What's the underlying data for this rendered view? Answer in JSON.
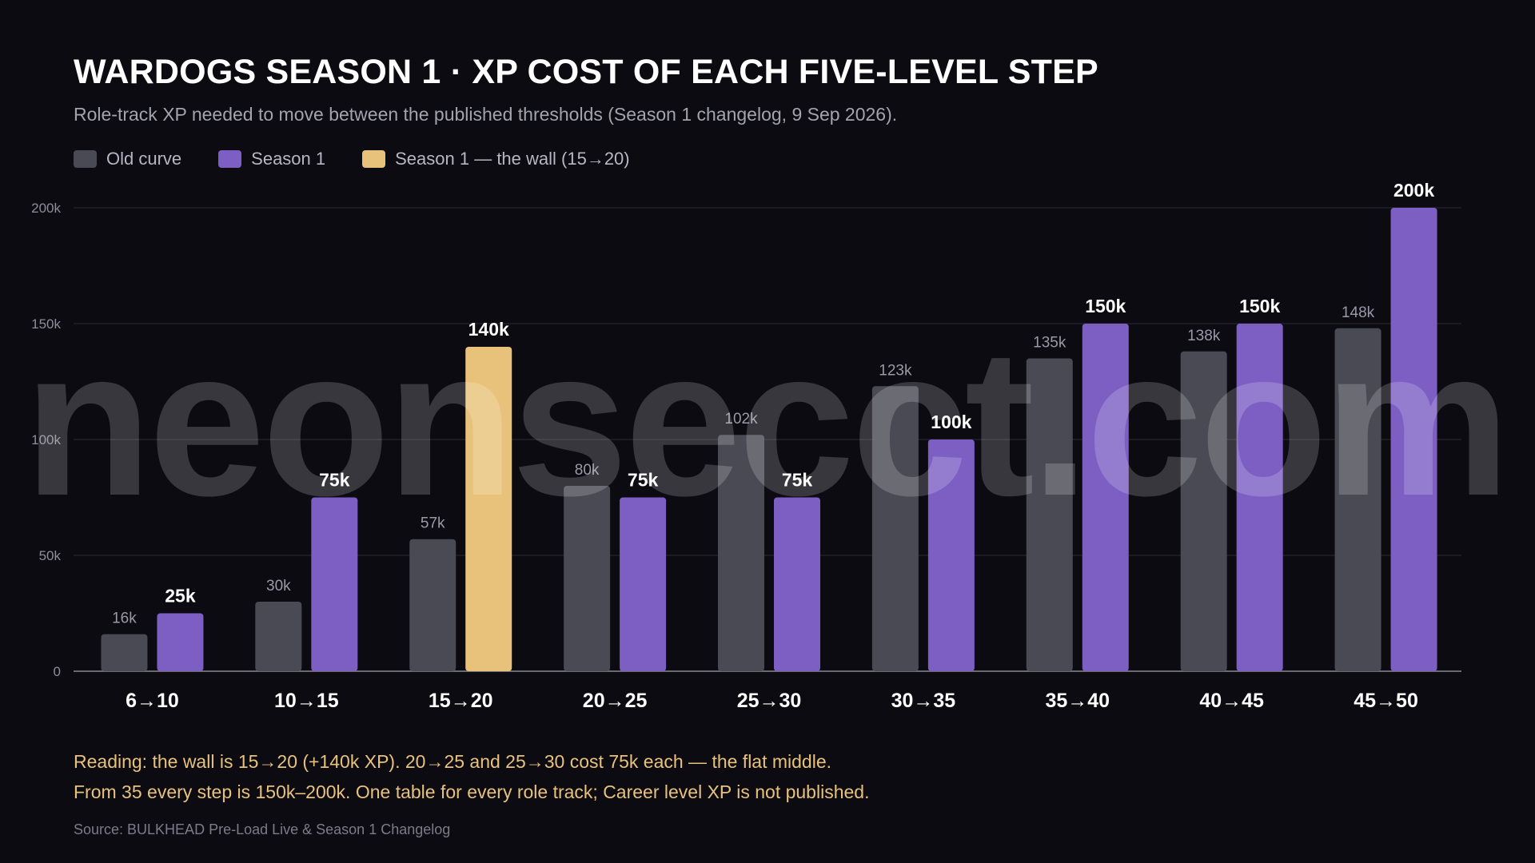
{
  "title": "WARDOGS SEASON 1 · XP COST OF EACH FIVE-LEVEL STEP",
  "subtitle": "Role-track XP needed to move between the published thresholds (Season 1 changelog, 9 Sep 2026).",
  "legend": {
    "items": [
      {
        "label": "Old curve",
        "color": "#4a4a55"
      },
      {
        "label": "Season 1",
        "color": "#7d5fc4"
      },
      {
        "label": "Season 1 — the wall (15→20)",
        "color": "#e8c27a"
      }
    ]
  },
  "chart_data": {
    "type": "bar",
    "title": "WARDOGS SEASON 1 · XP COST OF EACH FIVE-LEVEL STEP",
    "xlabel": "",
    "ylabel": "",
    "ylim": [
      0,
      200000
    ],
    "yticks": [
      0,
      50000,
      100000,
      150000,
      200000
    ],
    "ytick_labels": [
      "0",
      "50k",
      "100k",
      "150k",
      "200k"
    ],
    "grid": true,
    "legend_position": "top-left",
    "categories": [
      "6→10",
      "10→15",
      "15→20",
      "20→25",
      "25→30",
      "30→35",
      "35→40",
      "40→45",
      "45→50"
    ],
    "series": [
      {
        "name": "Old curve",
        "color": "#4a4a55",
        "values": [
          16000,
          30000,
          57000,
          80000,
          102000,
          123000,
          135000,
          138000,
          148000
        ],
        "labels": [
          "16k",
          "30k",
          "57k",
          "80k",
          "102k",
          "123k",
          "135k",
          "138k",
          "148k"
        ]
      },
      {
        "name": "Season 1",
        "color": "#7d5fc4",
        "highlight_color": "#e8c27a",
        "highlight_category": "15→20",
        "values": [
          25000,
          75000,
          140000,
          75000,
          75000,
          100000,
          150000,
          150000,
          200000
        ],
        "labels": [
          "25k",
          "75k",
          "140k",
          "75k",
          "75k",
          "100k",
          "150k",
          "150k",
          "200k"
        ]
      }
    ]
  },
  "notes": {
    "line1": "Reading: the wall is 15→20 (+140k XP). 20→25 and 25→30 cost 75k each — the flat middle.",
    "line2": "From 35 every step is 150k–200k. One table for every role track; Career level XP is not published."
  },
  "source": "Source: BULKHEAD Pre-Load Live & Season 1 Changelog",
  "watermark": "neonsecct.com",
  "colors": {
    "background": "#0c0b12",
    "grid": "#2b2a33",
    "axis": "#8a8994",
    "old_label": "#9a99a5",
    "new_label": "#ffffff",
    "note": "#e8c27a"
  }
}
